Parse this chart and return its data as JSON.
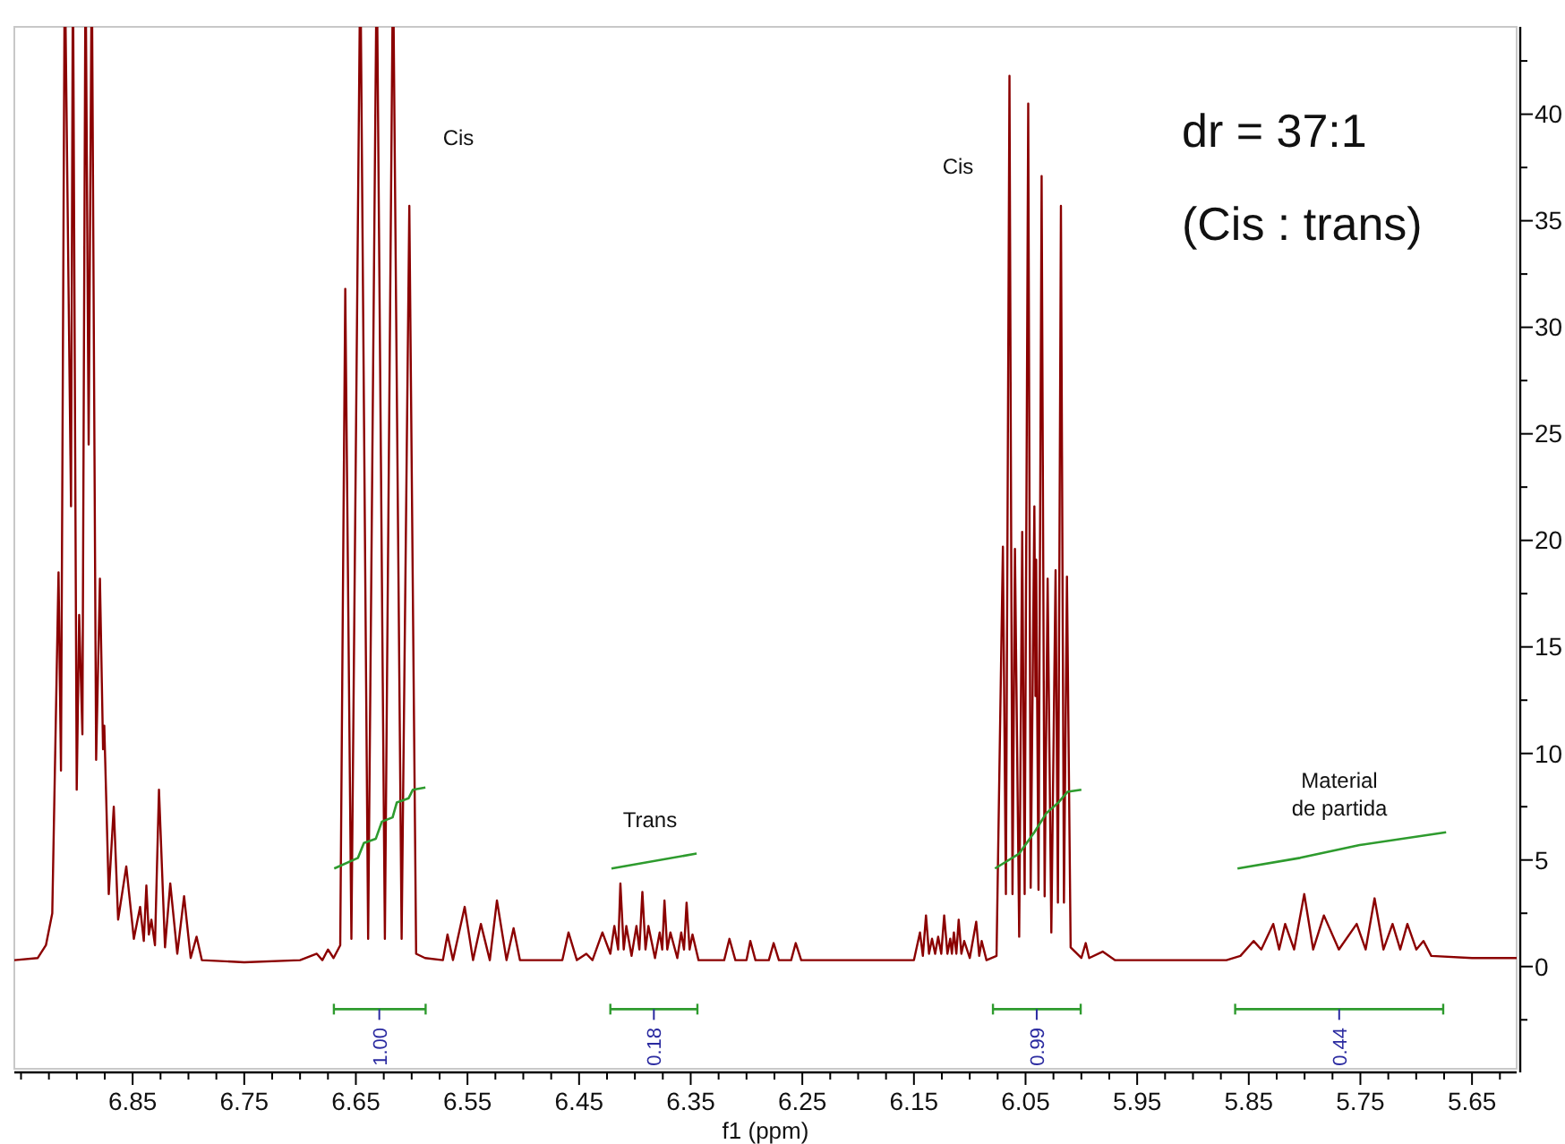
{
  "chart_data": {
    "type": "line",
    "xlabel": "f1 (ppm)",
    "xlim": [
      6.956,
      5.61
    ],
    "ylim": [
      -4.8,
      44.1
    ],
    "xticks": [
      {
        "value": 6.95,
        "label": null
      },
      {
        "value": 6.925,
        "label": null
      },
      {
        "value": 6.9,
        "label": null
      },
      {
        "value": 6.875,
        "label": null
      },
      6.85,
      {
        "value": 6.825,
        "label": null
      },
      {
        "value": 6.8,
        "label": null
      },
      {
        "value": 6.775,
        "label": null
      },
      6.75,
      {
        "value": 6.725,
        "label": null
      },
      {
        "value": 6.7,
        "label": null
      },
      {
        "value": 6.675,
        "label": null
      },
      6.65,
      {
        "value": 6.625,
        "label": null
      },
      {
        "value": 6.6,
        "label": null
      },
      {
        "value": 6.575,
        "label": null
      },
      6.55,
      {
        "value": 6.525,
        "label": null
      },
      {
        "value": 6.5,
        "label": null
      },
      {
        "value": 6.475,
        "label": null
      },
      6.45,
      {
        "value": 6.425,
        "label": null
      },
      {
        "value": 6.4,
        "label": null
      },
      {
        "value": 6.375,
        "label": null
      },
      6.35,
      {
        "value": 6.325,
        "label": null
      },
      {
        "value": 6.3,
        "label": null
      },
      {
        "value": 6.275,
        "label": null
      },
      6.25,
      {
        "value": 6.225,
        "label": null
      },
      {
        "value": 6.2,
        "label": null
      },
      {
        "value": 6.175,
        "label": null
      },
      6.15,
      {
        "value": 6.125,
        "label": null
      },
      {
        "value": 6.1,
        "label": null
      },
      {
        "value": 6.075,
        "label": null
      },
      6.05,
      {
        "value": 6.025,
        "label": null
      },
      {
        "value": 6.0,
        "label": null
      },
      {
        "value": 5.975,
        "label": null
      },
      5.95,
      {
        "value": 5.925,
        "label": null
      },
      {
        "value": 5.9,
        "label": null
      },
      {
        "value": 5.875,
        "label": null
      },
      5.85,
      {
        "value": 5.825,
        "label": null
      },
      {
        "value": 5.8,
        "label": null
      },
      {
        "value": 5.775,
        "label": null
      },
      5.75,
      {
        "value": 5.725,
        "label": null
      },
      {
        "value": 5.7,
        "label": null
      },
      {
        "value": 5.675,
        "label": null
      },
      5.65,
      {
        "value": 5.625,
        "label": null
      }
    ],
    "yticks": [
      {
        "value": -2.5,
        "label": null
      },
      0,
      {
        "value": 2.5,
        "label": null
      },
      5,
      {
        "value": 7.5,
        "label": null
      },
      10,
      {
        "value": 12.5,
        "label": null
      },
      15,
      {
        "value": 17.5,
        "label": null
      },
      20,
      {
        "value": 22.5,
        "label": null
      },
      25,
      {
        "value": 27.5,
        "label": null
      },
      30,
      {
        "value": 32.5,
        "label": null
      },
      35,
      {
        "value": 37.5,
        "label": null
      },
      40,
      {
        "value": 42.5,
        "label": null
      }
    ],
    "grid": false,
    "series": [
      {
        "color": "#8b0000",
        "x": [
          6.956,
          6.935,
          6.9277,
          6.922,
          6.9164,
          6.9142,
          6.9108,
          6.9052,
          6.9035,
          6.9001,
          6.8979,
          6.895,
          6.8922,
          6.8894,
          6.8866,
          6.8827,
          6.8793,
          6.8765,
          6.8754,
          6.8714,
          6.8669,
          6.863,
          6.8557,
          6.8489,
          6.8433,
          6.84,
          6.8377,
          6.8355,
          6.8332,
          6.83,
          6.8264,
          6.821,
          6.8163,
          6.81,
          6.8039,
          6.798,
          6.7927,
          6.788,
          6.75,
          6.7,
          6.685,
          6.68,
          6.675,
          6.67,
          6.664,
          6.6595,
          6.654,
          6.646,
          6.639,
          6.6313,
          6.624,
          6.6167,
          6.609,
          6.6021,
          6.596,
          6.588,
          6.572,
          6.5679,
          6.563,
          6.5525,
          6.545,
          6.538,
          6.53,
          6.5236,
          6.515,
          6.5087,
          6.503,
          6.465,
          6.4595,
          6.452,
          6.4435,
          6.438,
          6.4291,
          6.422,
          6.4184,
          6.415,
          6.413,
          6.41,
          6.4077,
          6.403,
          6.3986,
          6.396,
          6.3933,
          6.3905,
          6.3879,
          6.382,
          6.3778,
          6.3755,
          6.3735,
          6.371,
          6.3682,
          6.362,
          6.3585,
          6.356,
          6.3537,
          6.351,
          6.3484,
          6.343,
          6.32,
          6.3153,
          6.31,
          6.3,
          6.2966,
          6.292,
          6.28,
          6.2757,
          6.271,
          6.26,
          6.2559,
          6.251,
          6.2,
          6.15,
          6.1446,
          6.142,
          6.1392,
          6.1365,
          6.1338,
          6.131,
          6.1283,
          6.1255,
          6.1229,
          6.12,
          6.1175,
          6.116,
          6.1142,
          6.112,
          6.1099,
          6.1075,
          6.105,
          6.1,
          6.0942,
          6.0915,
          6.0893,
          6.085,
          6.076,
          6.0703,
          6.0676,
          6.0644,
          6.0617,
          6.0595,
          6.0557,
          6.053,
          6.0508,
          6.0476,
          6.0454,
          6.0421,
          6.0411,
          6.0405,
          6.0384,
          6.0356,
          6.0329,
          6.0302,
          6.0269,
          6.0231,
          6.021,
          6.0183,
          6.0156,
          6.0129,
          6.0096,
          6.0,
          5.9961,
          5.993,
          5.9809,
          5.97,
          5.9,
          5.87,
          5.8575,
          5.8457,
          5.8388,
          5.8281,
          5.8228,
          5.8174,
          5.8094,
          5.8003,
          5.7923,
          5.7827,
          5.7693,
          5.7533,
          5.7453,
          5.7373,
          5.7293,
          5.7212,
          5.7143,
          5.7079,
          5.6999,
          5.6935,
          5.6865,
          5.65,
          5.61
        ],
        "values": [
          0.3,
          0.4,
          1.0,
          2.5,
          18.5,
          9.2,
          null,
          21.6,
          null,
          8.3,
          16.5,
          10.9,
          null,
          24.5,
          null,
          9.7,
          18.2,
          10.2,
          11.3,
          3.4,
          7.5,
          2.2,
          4.7,
          1.3,
          2.8,
          1.2,
          3.8,
          1.5,
          2.2,
          1.0,
          8.3,
          0.9,
          3.9,
          0.6,
          3.3,
          0.4,
          1.4,
          0.3,
          0.2,
          0.3,
          0.6,
          0.3,
          0.8,
          0.4,
          1.0,
          31.8,
          1.3,
          null,
          1.3,
          null,
          1.3,
          null,
          1.3,
          35.7,
          0.6,
          0.4,
          0.3,
          1.5,
          0.3,
          2.8,
          0.3,
          2.0,
          0.3,
          3.1,
          0.3,
          1.8,
          0.3,
          0.3,
          1.6,
          0.3,
          0.6,
          0.3,
          1.6,
          0.6,
          1.9,
          0.8,
          3.9,
          0.8,
          1.9,
          0.5,
          1.9,
          0.8,
          3.5,
          0.8,
          1.9,
          0.4,
          1.6,
          0.8,
          3.1,
          0.8,
          1.6,
          0.4,
          1.6,
          0.8,
          3.0,
          0.8,
          1.5,
          0.3,
          0.3,
          1.3,
          0.3,
          0.3,
          1.2,
          0.3,
          0.3,
          1.1,
          0.3,
          0.3,
          1.1,
          0.3,
          0.3,
          0.3,
          1.6,
          0.5,
          2.4,
          0.6,
          1.3,
          0.6,
          1.4,
          0.6,
          2.4,
          0.6,
          1.3,
          0.6,
          1.6,
          0.6,
          2.2,
          0.6,
          1.2,
          0.4,
          2.1,
          0.5,
          1.2,
          0.3,
          0.5,
          19.7,
          3.4,
          41.8,
          3.4,
          19.6,
          1.4,
          20.4,
          3.4,
          40.5,
          3.7,
          21.6,
          12.7,
          19.1,
          3.6,
          37.1,
          3.3,
          18.2,
          1.6,
          18.6,
          3.0,
          35.7,
          3.0,
          18.3,
          0.9,
          0.4,
          1.1,
          0.4,
          0.7,
          0.3,
          0.3,
          0.3,
          0.5,
          1.2,
          0.8,
          2.0,
          0.8,
          2.0,
          0.8,
          3.4,
          0.8,
          2.4,
          0.8,
          2.0,
          0.8,
          3.2,
          0.8,
          2.0,
          0.8,
          2.0,
          0.8,
          1.2,
          0.5,
          0.4,
          0.4
        ]
      },
      {
        "color": "#2e9b2e",
        "x": [
          6.6694,
          6.6481,
          6.6428,
          6.6321,
          6.6267,
          6.6171,
          6.6133,
          6.6027,
          6.5989,
          6.5877
        ],
        "values": [
          4.6,
          5.1,
          5.8,
          6.0,
          6.8,
          7.0,
          7.7,
          7.9,
          8.3,
          8.4
        ]
      },
      {
        "color": "#2e9b2e",
        "x": [
          6.421,
          6.3447
        ],
        "values": [
          4.6,
          5.3
        ]
      },
      {
        "color": "#2e9b2e",
        "x": [
          6.0774,
          6.0557,
          6.0421,
          6.0313,
          6.0205,
          6.0124,
          6.0
        ],
        "values": [
          4.6,
          5.3,
          6.3,
          7.2,
          7.7,
          8.2,
          8.3
        ]
      },
      {
        "color": "#2e9b2e",
        "x": [
          5.8601,
          5.804,
          5.7506,
          5.6732
        ],
        "values": [
          4.6,
          5.1,
          5.7,
          6.3
        ]
      },
      {
        "color": "#2e9b2e",
        "x": [
          6.6697,
          6.5875
        ],
        "values": [
          -2.0,
          -2.0
        ]
      },
      {
        "color": "#2e9b2e",
        "x": [
          6.422,
          6.344
        ],
        "values": [
          -2.0,
          -2.0
        ]
      },
      {
        "color": "#2e9b2e",
        "x": [
          6.0792,
          6.0006
        ],
        "values": [
          -2.0,
          -2.0
        ]
      },
      {
        "color": "#2e9b2e",
        "x": [
          5.8622,
          5.6758
        ],
        "values": [
          -2.0,
          -2.0
        ]
      }
    ],
    "annotations": [
      {
        "text": "1.00",
        "x": 6.629,
        "y": -2.0
      },
      {
        "text": "0.18",
        "x": 6.383,
        "y": -2.0
      },
      {
        "text": "0.99",
        "x": 6.04,
        "y": -2.0
      },
      {
        "text": "0.44",
        "x": 5.769,
        "y": -2.0
      },
      "Cis",
      "Cis",
      "Trans",
      "Material\nde partida",
      "dr = 37:1",
      "(Cis : trans)"
    ]
  }
}
